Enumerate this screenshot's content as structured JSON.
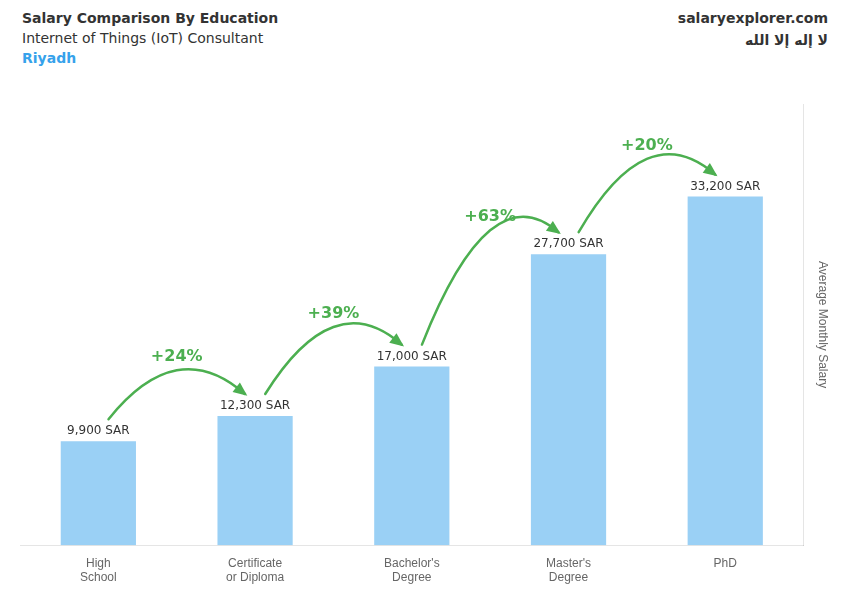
{
  "chart_data": {
    "type": "bar",
    "title": "Salary Comparison By Education",
    "subtitle": "Internet of Things (IoT) Consultant",
    "annotations": [
      "Riyadh",
      "salaryexplorer.com",
      "لا إله إلا الله"
    ],
    "ylabel": "Average Monthly Salary",
    "categories": [
      "High\nSchool",
      "Certificate\nor Diploma",
      "Bachelor's\nDegree",
      "Master's\nDegree",
      "PhD"
    ],
    "values": [
      9900,
      12300,
      17000,
      27700,
      33200
    ],
    "value_labels": [
      "9,900 SAR",
      "12,300 SAR",
      "17,000 SAR",
      "27,700 SAR",
      "33,200 SAR"
    ],
    "data_labels": true,
    "change_labels": [
      "+24%",
      "+39%",
      "+63%",
      "+20%"
    ],
    "ylim": [
      0,
      42000
    ],
    "grid": false,
    "tick_labels": "x"
  }
}
